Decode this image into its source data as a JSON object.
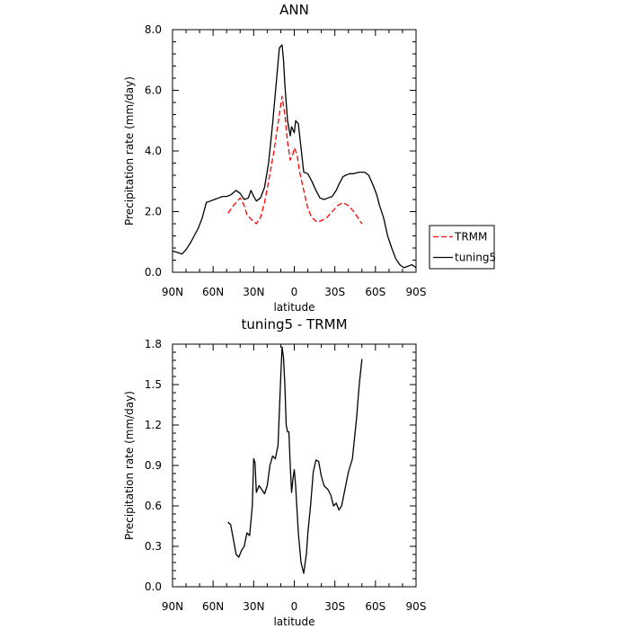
{
  "chart_data": [
    {
      "type": "line",
      "title": "ANN",
      "xlabel": "latitude",
      "ylabel": "Precipitation rate (mm/day)",
      "xlim": [
        90,
        -90
      ],
      "ylim": [
        0,
        8
      ],
      "x_ticks": [
        90,
        60,
        30,
        0,
        -30,
        -60,
        -90
      ],
      "x_tick_labels": [
        "90N",
        "60N",
        "30N",
        "0",
        "30S",
        "60S",
        "90S"
      ],
      "y_ticks": [
        0,
        2,
        4,
        6,
        8
      ],
      "y_tick_labels": [
        "0.0",
        "2.0",
        "4.0",
        "6.0",
        "8.0"
      ],
      "legend_position": "right",
      "series": [
        {
          "name": "TRMM",
          "color": "#ff0000",
          "dash": "dashed",
          "x": [
            49,
            45,
            40,
            37,
            35,
            32,
            28,
            25,
            22,
            19,
            15,
            11,
            9,
            7,
            5,
            3,
            1,
            0,
            -2,
            -4,
            -7,
            -10,
            -13,
            -17,
            -20,
            -24,
            -28,
            -32,
            -36,
            -40,
            -44,
            -47,
            -50
          ],
          "y": [
            1.95,
            2.2,
            2.45,
            2.2,
            1.9,
            1.75,
            1.6,
            1.8,
            2.3,
            3.0,
            4.0,
            5.2,
            5.8,
            5.2,
            4.3,
            3.7,
            3.9,
            4.1,
            3.9,
            3.3,
            2.7,
            2.1,
            1.8,
            1.65,
            1.7,
            1.8,
            2.0,
            2.2,
            2.3,
            2.2,
            2.0,
            1.8,
            1.6
          ]
        },
        {
          "name": "tuning5",
          "color": "#000000",
          "dash": "solid",
          "x": [
            90,
            86,
            83,
            80,
            77,
            74,
            71,
            68,
            65,
            62,
            59,
            56,
            53,
            50,
            47,
            43,
            40,
            37,
            34,
            32,
            30,
            28,
            25,
            22,
            19,
            16,
            13,
            11,
            9,
            8,
            7,
            5,
            3,
            2,
            0,
            -1,
            -3,
            -5,
            -7,
            -10,
            -13,
            -16,
            -19,
            -22,
            -25,
            -28,
            -31,
            -33,
            -36,
            -38,
            -41,
            -44,
            -48,
            -52,
            -55,
            -58,
            -61,
            -63,
            -66,
            -69,
            -72,
            -75,
            -78,
            -81,
            -84,
            -87,
            -90
          ],
          "y": [
            0.7,
            0.65,
            0.6,
            0.75,
            0.95,
            1.2,
            1.45,
            1.8,
            2.3,
            2.35,
            2.4,
            2.45,
            2.5,
            2.5,
            2.55,
            2.7,
            2.6,
            2.4,
            2.45,
            2.7,
            2.5,
            2.35,
            2.45,
            2.8,
            3.6,
            4.9,
            6.4,
            7.4,
            7.5,
            7.0,
            6.2,
            5.0,
            4.5,
            4.8,
            4.6,
            5.0,
            4.9,
            4.1,
            3.3,
            3.25,
            3.0,
            2.7,
            2.45,
            2.4,
            2.45,
            2.5,
            2.7,
            2.9,
            3.15,
            3.2,
            3.25,
            3.25,
            3.3,
            3.3,
            3.2,
            2.9,
            2.55,
            2.2,
            1.8,
            1.2,
            0.8,
            0.45,
            0.25,
            0.15,
            0.2,
            0.25,
            0.15
          ]
        }
      ]
    },
    {
      "type": "line",
      "title": "tuning5 - TRMM",
      "xlabel": "latitude",
      "ylabel": "Precipitation rate (mm/day)",
      "xlim": [
        90,
        -90
      ],
      "ylim": [
        0,
        1.8
      ],
      "x_ticks": [
        90,
        60,
        30,
        0,
        -30,
        -60,
        -90
      ],
      "x_tick_labels": [
        "90N",
        "60N",
        "30N",
        "0",
        "30S",
        "60S",
        "90S"
      ],
      "y_ticks": [
        0,
        0.3,
        0.6,
        0.9,
        1.2,
        1.5,
        1.8
      ],
      "y_tick_labels": [
        "0.0",
        "0.3",
        "0.6",
        "0.9",
        "1.2",
        "1.5",
        "1.8"
      ],
      "series": [
        {
          "name": "",
          "color": "#000000",
          "dash": "solid",
          "x": [
            49,
            47,
            45,
            43,
            41,
            39,
            37,
            35,
            33,
            31,
            30,
            29,
            28,
            26,
            24,
            22,
            20,
            18,
            16,
            14,
            12,
            10,
            9,
            8,
            7,
            6,
            5,
            4,
            3,
            2,
            1,
            0,
            -1,
            -3,
            -5,
            -7,
            -9,
            -10,
            -12,
            -14,
            -16,
            -18,
            -20,
            -22,
            -25,
            -27,
            -29,
            -31,
            -33,
            -35,
            -37,
            -40,
            -43,
            -46,
            -48,
            -50
          ],
          "y": [
            0.48,
            0.46,
            0.35,
            0.24,
            0.22,
            0.27,
            0.3,
            0.4,
            0.38,
            0.6,
            0.95,
            0.92,
            0.7,
            0.75,
            0.72,
            0.69,
            0.75,
            0.9,
            0.97,
            0.95,
            1.05,
            1.55,
            1.78,
            1.7,
            1.5,
            1.2,
            1.15,
            1.15,
            0.9,
            0.7,
            0.8,
            0.87,
            0.75,
            0.4,
            0.18,
            0.1,
            0.25,
            0.4,
            0.6,
            0.85,
            0.94,
            0.93,
            0.82,
            0.75,
            0.72,
            0.68,
            0.6,
            0.62,
            0.57,
            0.6,
            0.7,
            0.85,
            0.95,
            1.25,
            1.5,
            1.69
          ]
        }
      ]
    }
  ]
}
